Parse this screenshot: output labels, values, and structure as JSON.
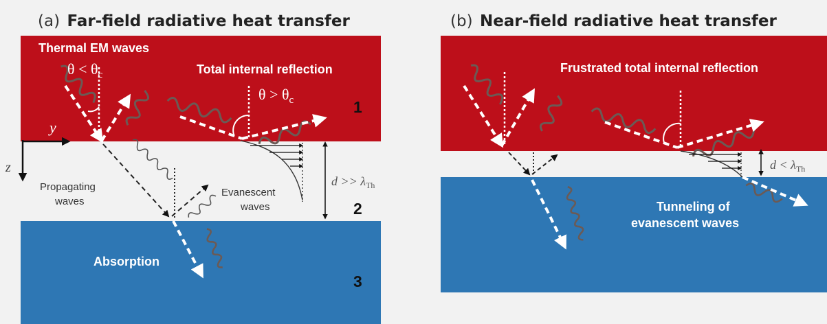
{
  "panel_a": {
    "title_prefix": "(a)",
    "title_main": "Far-field radiative heat transfer",
    "label_thermal": "Thermal EM waves",
    "label_theta_lt": "θ < θ",
    "label_theta_lt_sub": "c",
    "label_tir": "Total internal reflection",
    "label_theta_gt": "θ > θ",
    "label_theta_gt_sub": "c",
    "medium_1": "1",
    "medium_2": "2",
    "medium_3": "3",
    "axis_y": "y",
    "axis_z": "z",
    "label_propagating_1": "Propagating",
    "label_propagating_2": "waves",
    "label_evanescent_1": "Evanescent",
    "label_evanescent_2": "waves",
    "label_gap": "d >> λ",
    "label_gap_sub": "Th",
    "label_absorption": "Absorption"
  },
  "panel_b": {
    "title_prefix": "(b)",
    "title_main": "Near-field radiative heat transfer",
    "label_ftir": "Frustrated total internal reflection",
    "label_gap": "d < λ",
    "label_gap_sub": "Th",
    "label_tunneling_1": "Tunneling of",
    "label_tunneling_2": "evanescent waves"
  },
  "colors": {
    "red": "#bd0f1a",
    "blue": "#2e77b4",
    "background": "#f2f2f2",
    "arrow": "#ffffff",
    "wave": "#6b5a55"
  }
}
